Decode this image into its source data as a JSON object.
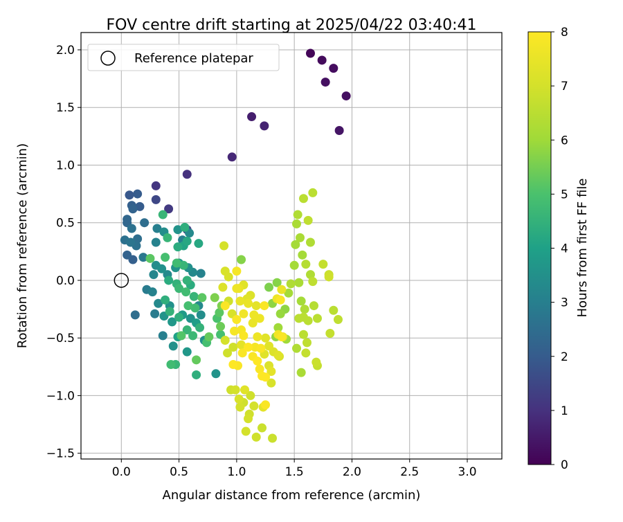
{
  "chart_data": {
    "type": "scatter",
    "title": "FOV centre drift starting at 2025/04/22 03:40:41",
    "xlabel": "Angular distance from reference (arcmin)",
    "ylabel": "Rotation from reference (arcmin)",
    "xlim": [
      -0.35,
      3.3
    ],
    "ylim": [
      -1.55,
      2.15
    ],
    "xticks": [
      0.0,
      0.5,
      1.0,
      1.5,
      2.0,
      2.5,
      3.0
    ],
    "xtick_labels": [
      "0.0",
      "0.5",
      "1.0",
      "1.5",
      "2.0",
      "2.5",
      "3.0"
    ],
    "yticks": [
      -1.5,
      -1.0,
      -0.5,
      0.0,
      0.5,
      1.0,
      1.5,
      2.0
    ],
    "ytick_labels": [
      "−1.5",
      "−1.0",
      "−0.5",
      "0.0",
      "0.5",
      "1.0",
      "1.5",
      "2.0"
    ],
    "grid": true,
    "legend": {
      "placement": "top-left",
      "entries": [
        {
          "label": "Reference platepar",
          "marker": "open-circle"
        }
      ]
    },
    "reference_point": {
      "x": 0.0,
      "y": 0.0
    },
    "colorbar": {
      "label": "Hours from first FF file",
      "colormap": "viridis",
      "range": [
        0,
        8
      ],
      "ticks": [
        0,
        1,
        2,
        3,
        4,
        5,
        6,
        7,
        8
      ],
      "tick_labels": [
        "0",
        "1",
        "2",
        "3",
        "4",
        "5",
        "6",
        "7",
        "8"
      ]
    },
    "series": [
      {
        "points": [
          [
            1.64,
            1.97,
            0.1
          ],
          [
            1.74,
            1.91,
            0.2
          ],
          [
            1.84,
            1.84,
            0.25
          ],
          [
            1.77,
            1.72,
            0.3
          ],
          [
            1.95,
            1.6,
            0.3
          ],
          [
            1.89,
            1.3,
            0.4
          ],
          [
            1.13,
            1.42,
            0.6
          ],
          [
            1.24,
            1.34,
            0.7
          ],
          [
            0.96,
            1.07,
            0.8
          ],
          [
            0.57,
            0.92,
            1.0
          ],
          [
            0.3,
            0.82,
            1.1
          ],
          [
            0.41,
            0.62,
            1.2
          ],
          [
            0.3,
            0.7,
            1.5
          ],
          [
            0.57,
            0.44,
            1.4
          ],
          [
            0.07,
            0.74,
            1.9
          ],
          [
            0.14,
            0.75,
            2.0
          ],
          [
            0.09,
            0.65,
            2.1
          ],
          [
            0.16,
            0.64,
            2.0
          ],
          [
            0.1,
            0.62,
            2.2
          ],
          [
            0.05,
            0.53,
            2.3
          ],
          [
            0.05,
            0.5,
            2.3
          ],
          [
            0.2,
            0.5,
            2.5
          ],
          [
            0.09,
            0.45,
            2.6
          ],
          [
            0.14,
            0.36,
            2.5
          ],
          [
            0.03,
            0.35,
            2.6
          ],
          [
            0.08,
            0.33,
            2.7
          ],
          [
            0.13,
            0.3,
            2.6
          ],
          [
            0.05,
            0.22,
            2.2
          ],
          [
            0.1,
            0.18,
            2.1
          ],
          [
            0.19,
            0.2,
            2.8
          ],
          [
            0.3,
            0.33,
            3.1
          ],
          [
            0.31,
            0.45,
            3.0
          ],
          [
            0.37,
            0.42,
            3.4
          ],
          [
            0.49,
            0.44,
            3.6
          ],
          [
            0.59,
            0.41,
            3.3
          ],
          [
            0.53,
            0.35,
            3.0
          ],
          [
            0.3,
            0.13,
            3.4
          ],
          [
            0.28,
            0.05,
            3.2
          ],
          [
            0.35,
            0.1,
            3.5
          ],
          [
            0.4,
            0.05,
            3.3
          ],
          [
            0.47,
            0.11,
            3.6
          ],
          [
            0.5,
            0.15,
            3.8
          ],
          [
            0.58,
            0.11,
            3.5
          ],
          [
            0.62,
            0.07,
            3.3
          ],
          [
            0.69,
            0.06,
            3.1
          ],
          [
            0.22,
            -0.08,
            2.9
          ],
          [
            0.27,
            -0.1,
            3.1
          ],
          [
            0.32,
            -0.2,
            3.3
          ],
          [
            0.42,
            -0.22,
            3.5
          ],
          [
            0.29,
            -0.29,
            2.9
          ],
          [
            0.37,
            -0.31,
            3.6
          ],
          [
            0.44,
            -0.36,
            3.7
          ],
          [
            0.53,
            -0.3,
            3.8
          ],
          [
            0.6,
            -0.33,
            3.6
          ],
          [
            0.67,
            -0.22,
            3.3
          ],
          [
            0.65,
            -0.37,
            3.9
          ],
          [
            0.69,
            -0.3,
            3.4
          ],
          [
            0.12,
            -0.3,
            2.5
          ],
          [
            0.36,
            -0.48,
            3.0
          ],
          [
            0.45,
            -0.57,
            3.5
          ],
          [
            0.49,
            -0.49,
            4.0
          ],
          [
            0.57,
            -0.62,
            3.7
          ],
          [
            0.72,
            -0.52,
            3.5
          ],
          [
            0.82,
            -0.81,
            3.6
          ],
          [
            0.65,
            -0.82,
            4.4
          ],
          [
            0.36,
            0.57,
            4.6
          ],
          [
            0.4,
            0.37,
            4.6
          ],
          [
            0.49,
            0.29,
            4.3
          ],
          [
            0.54,
            0.3,
            4.1
          ],
          [
            0.55,
            0.46,
            4.4
          ],
          [
            0.57,
            0.34,
            4.2
          ],
          [
            0.67,
            0.32,
            4.2
          ],
          [
            0.25,
            0.19,
            5.2
          ],
          [
            0.38,
            0.2,
            4.9
          ],
          [
            0.48,
            0.15,
            4.8
          ],
          [
            0.54,
            0.13,
            4.6
          ],
          [
            0.41,
            0.0,
            4.3
          ],
          [
            0.48,
            -0.03,
            4.5
          ],
          [
            0.5,
            -0.07,
            4.7
          ],
          [
            0.57,
            0.0,
            4.5
          ],
          [
            0.6,
            -0.04,
            4.3
          ],
          [
            0.56,
            -0.1,
            4.8
          ],
          [
            0.63,
            -0.14,
            4.6
          ],
          [
            0.7,
            -0.15,
            5.2
          ],
          [
            0.38,
            -0.17,
            4.4
          ],
          [
            0.42,
            -0.27,
            4.5
          ],
          [
            0.5,
            -0.32,
            4.4
          ],
          [
            0.58,
            -0.22,
            4.9
          ],
          [
            0.64,
            -0.24,
            4.8
          ],
          [
            0.57,
            -0.43,
            4.6
          ],
          [
            0.62,
            -0.48,
            4.7
          ],
          [
            0.68,
            -0.41,
            4.5
          ],
          [
            0.52,
            -0.48,
            5.1
          ],
          [
            0.43,
            -0.73,
            4.8
          ],
          [
            0.47,
            -0.73,
            4.6
          ],
          [
            0.65,
            -0.69,
            5.3
          ],
          [
            0.76,
            -0.49,
            5.3
          ],
          [
            0.74,
            -0.54,
            4.9
          ],
          [
            0.83,
            -0.33,
            5.0
          ],
          [
            0.86,
            -0.47,
            4.9
          ],
          [
            0.85,
            -0.28,
            5.2
          ],
          [
            0.81,
            -0.15,
            5.6
          ],
          [
            0.87,
            -0.22,
            5.6
          ],
          [
            0.86,
            -0.4,
            5.4
          ],
          [
            1.04,
            0.18,
            5.7
          ],
          [
            1.28,
            -0.06,
            5.6
          ],
          [
            1.35,
            -0.02,
            5.7
          ],
          [
            1.31,
            -0.2,
            5.8
          ],
          [
            1.38,
            -0.29,
            5.9
          ],
          [
            1.36,
            -0.41,
            6.0
          ],
          [
            1.34,
            -0.49,
            5.8
          ],
          [
            1.42,
            -0.25,
            5.8
          ],
          [
            1.45,
            -0.11,
            6.1
          ],
          [
            1.47,
            -0.03,
            6.3
          ],
          [
            1.54,
            -0.02,
            6.2
          ],
          [
            1.56,
            -0.18,
            6.1
          ],
          [
            1.5,
            0.13,
            6.1
          ],
          [
            1.55,
            0.37,
            6.2
          ],
          [
            1.51,
            0.31,
            6.1
          ],
          [
            1.52,
            0.49,
            6.2
          ],
          [
            1.53,
            0.57,
            6.3
          ],
          [
            1.57,
            0.22,
            6.1
          ],
          [
            1.58,
            0.71,
            6.5
          ],
          [
            1.62,
            0.52,
            6.6
          ],
          [
            1.6,
            0.14,
            6.4
          ],
          [
            1.64,
            0.33,
            6.3
          ],
          [
            1.66,
            0.76,
            6.5
          ],
          [
            1.64,
            0.05,
            6.3
          ],
          [
            1.66,
            -0.01,
            6.6
          ],
          [
            1.67,
            -0.22,
            6.4
          ],
          [
            1.59,
            -0.25,
            6.3
          ],
          [
            1.54,
            -0.33,
            6.5
          ],
          [
            1.62,
            -0.35,
            6.5
          ],
          [
            1.58,
            -0.47,
            6.5
          ],
          [
            1.61,
            -0.54,
            6.6
          ],
          [
            1.52,
            -0.59,
            6.3
          ],
          [
            1.56,
            -0.8,
            6.2
          ],
          [
            1.6,
            -0.63,
            6.7
          ],
          [
            1.69,
            -0.71,
            6.8
          ],
          [
            1.7,
            -0.74,
            6.7
          ],
          [
            1.75,
            0.14,
            6.7
          ],
          [
            1.8,
            0.05,
            6.8
          ],
          [
            1.8,
            0.03,
            6.9
          ],
          [
            1.81,
            -0.46,
            6.7
          ],
          [
            1.84,
            -0.26,
            6.5
          ],
          [
            1.88,
            -0.34,
            6.6
          ],
          [
            1.7,
            -0.33,
            6.5
          ],
          [
            1.43,
            -0.51,
            6.0
          ],
          [
            1.58,
            -0.32,
            6.5
          ],
          [
            0.89,
            0.3,
            7.0
          ],
          [
            0.9,
            0.08,
            7.1
          ],
          [
            0.88,
            -0.06,
            7.2
          ],
          [
            0.93,
            0.03,
            7.1
          ],
          [
            0.93,
            -0.18,
            6.9
          ],
          [
            0.96,
            -0.29,
            7.1
          ],
          [
            0.9,
            -0.52,
            7.0
          ],
          [
            0.92,
            -0.63,
            6.9
          ],
          [
            0.97,
            -0.58,
            6.9
          ],
          [
            0.95,
            -0.95,
            6.9
          ],
          [
            0.99,
            -0.95,
            7.0
          ],
          [
            1.02,
            -1.03,
            7.1
          ],
          [
            1.03,
            -1.1,
            7.0
          ],
          [
            1.06,
            -1.06,
            6.9
          ],
          [
            1.07,
            -0.95,
            7.3
          ],
          [
            1.12,
            -1.0,
            6.9
          ],
          [
            1.1,
            -1.2,
            7.0
          ],
          [
            1.11,
            -1.16,
            6.9
          ],
          [
            1.15,
            -1.09,
            7.0
          ],
          [
            1.08,
            -1.31,
            7.0
          ],
          [
            1.17,
            -1.36,
            6.9
          ],
          [
            1.22,
            -1.28,
            6.8
          ],
          [
            1.23,
            -1.1,
            7.4
          ],
          [
            1.31,
            -1.37,
            6.8
          ],
          [
            1.3,
            -0.89,
            7.1
          ],
          [
            1.3,
            -0.79,
            7.4
          ],
          [
            1.28,
            -0.74,
            7.2
          ],
          [
            1.24,
            -0.64,
            7.3
          ],
          [
            1.28,
            -0.57,
            7.3
          ],
          [
            1.32,
            -0.62,
            7.2
          ],
          [
            1.36,
            -0.65,
            7.3
          ],
          [
            1.37,
            -0.66,
            7.1
          ],
          [
            1.25,
            -0.5,
            7.3
          ],
          [
            1.18,
            -0.49,
            7.6
          ],
          [
            1.14,
            -0.37,
            7.5
          ],
          [
            1.2,
            -0.33,
            7.6
          ],
          [
            1.17,
            -0.22,
            7.4
          ],
          [
            1.03,
            -0.18,
            7.5
          ],
          [
            1.09,
            -0.16,
            7.3
          ],
          [
            1.02,
            -0.07,
            7.5
          ],
          [
            1.12,
            -0.13,
            7.2
          ],
          [
            1.06,
            -0.04,
            7.3
          ],
          [
            1.35,
            -0.16,
            7.6
          ],
          [
            1.39,
            -0.08,
            7.5
          ],
          [
            1.36,
            -0.47,
            7.7
          ],
          [
            1.4,
            -0.49,
            7.4
          ],
          [
            1.0,
            -0.07,
            7.6
          ],
          [
            1.0,
            0.08,
            7.8
          ],
          [
            1.0,
            -0.34,
            7.9
          ],
          [
            1.04,
            -0.43,
            7.8
          ],
          [
            1.06,
            -0.48,
            7.9
          ],
          [
            1.05,
            -0.63,
            7.9
          ],
          [
            1.1,
            -0.58,
            8.0
          ],
          [
            1.14,
            -0.66,
            7.9
          ],
          [
            1.18,
            -0.7,
            8.0
          ],
          [
            1.2,
            -0.77,
            7.9
          ],
          [
            1.22,
            -0.83,
            8.0
          ],
          [
            1.25,
            -0.84,
            8.0
          ],
          [
            1.21,
            -0.59,
            7.9
          ],
          [
            1.24,
            -0.22,
            7.9
          ],
          [
            1.38,
            -0.17,
            7.9
          ],
          [
            1.39,
            -0.49,
            7.9
          ],
          [
            1.25,
            -1.08,
            7.9
          ],
          [
            0.9,
            -0.22,
            7.9
          ],
          [
            0.97,
            -0.73,
            8.0
          ],
          [
            1.01,
            -0.74,
            7.9
          ],
          [
            1.16,
            -0.58,
            7.8
          ],
          [
            1.06,
            -0.29,
            7.7
          ],
          [
            1.15,
            -0.3,
            7.6
          ],
          [
            1.04,
            -0.56,
            7.4
          ],
          [
            0.98,
            -0.44,
            7.8
          ],
          [
            1.1,
            -0.2,
            7.5
          ]
        ]
      }
    ]
  }
}
